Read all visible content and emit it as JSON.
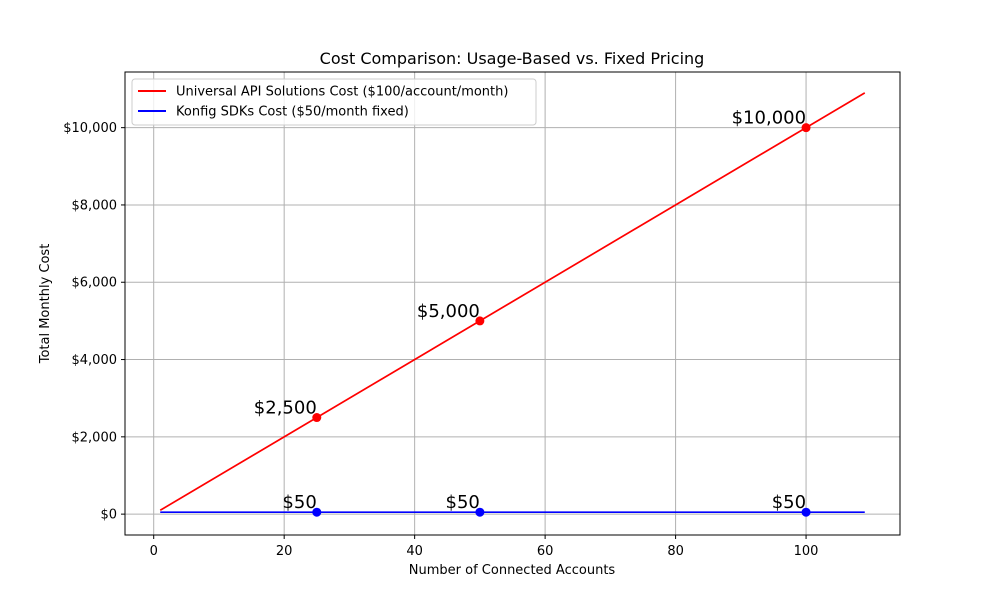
{
  "chart_data": {
    "type": "line",
    "title": "Cost Comparison: Usage-Based vs. Fixed Pricing",
    "xlabel": "Number of Connected Accounts",
    "ylabel": "Total Monthly Cost",
    "xlim": [
      -4.4,
      114.4
    ],
    "ylim": [
      -540,
      11440
    ],
    "x_ticks": [
      0,
      20,
      40,
      60,
      80,
      100
    ],
    "x_tick_labels": [
      "0",
      "20",
      "40",
      "60",
      "80",
      "100"
    ],
    "y_ticks": [
      0,
      2000,
      4000,
      6000,
      8000,
      10000
    ],
    "y_tick_labels": [
      "$0",
      "$2,000",
      "$4,000",
      "$6,000",
      "$8,000",
      "$10,000"
    ],
    "grid": true,
    "legend_position": "top-left",
    "series": [
      {
        "name": "Universal API Solutions Cost ($100/account/month)",
        "color": "#ff0000",
        "x": [
          1,
          109
        ],
        "values": [
          100,
          10900
        ],
        "markers": [
          {
            "x": 25,
            "y": 2500,
            "label": "$2,500"
          },
          {
            "x": 50,
            "y": 5000,
            "label": "$5,000"
          },
          {
            "x": 100,
            "y": 10000,
            "label": "$10,000"
          }
        ]
      },
      {
        "name": "Konfig SDKs Cost ($50/month fixed)",
        "color": "#0000ff",
        "x": [
          1,
          109
        ],
        "values": [
          50,
          50
        ],
        "markers": [
          {
            "x": 25,
            "y": 50,
            "label": "$50"
          },
          {
            "x": 50,
            "y": 50,
            "label": "$50"
          },
          {
            "x": 100,
            "y": 50,
            "label": "$50"
          }
        ]
      }
    ]
  }
}
